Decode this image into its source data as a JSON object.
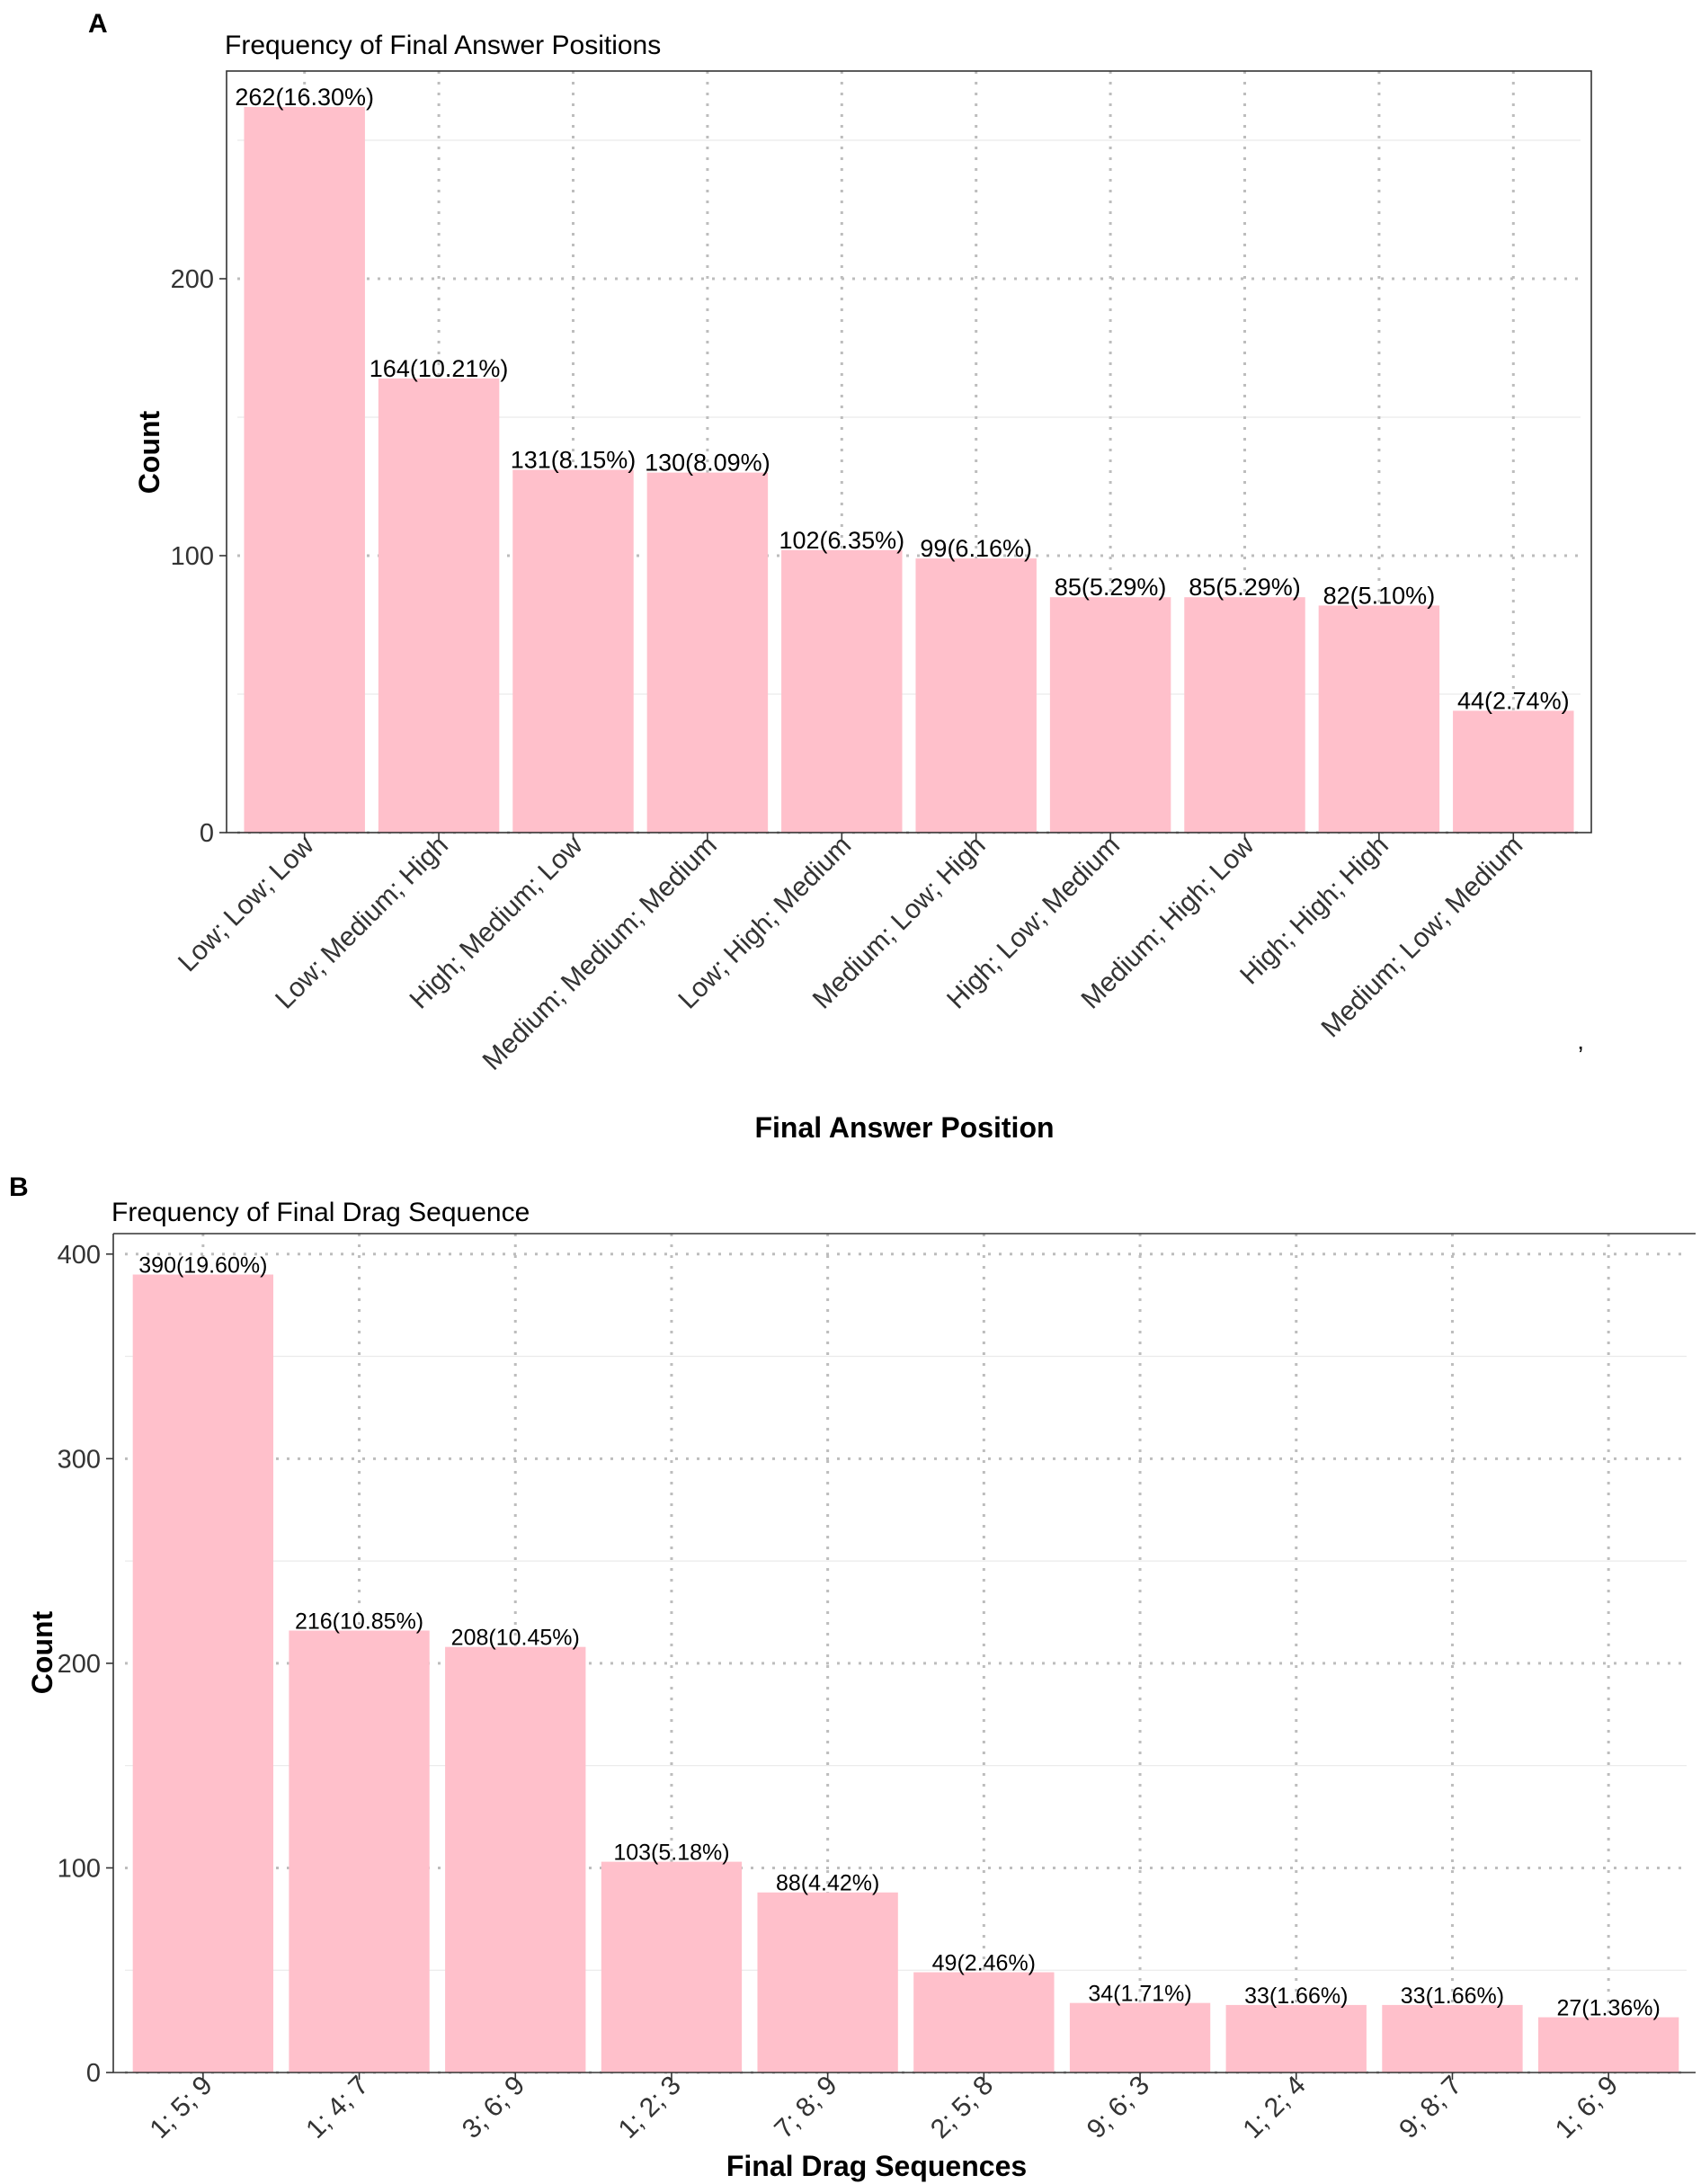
{
  "chart_data": [
    {
      "panel": "A",
      "type": "bar",
      "title": "Frequency of Final Answer Positions",
      "xlabel": "Final Answer Position",
      "ylabel": "Count",
      "ylim": [
        0,
        275
      ],
      "yticks": [
        0,
        100,
        200
      ],
      "grid": true,
      "fill_color": "#ffc0cb",
      "categories": [
        "Low; Low; Low",
        "Low; Medium; High",
        "High; Medium; Low",
        "Medium; Medium; Medium",
        "Low; High; Medium",
        "Medium; Low; High",
        "High; Low; Medium",
        "Medium; High; Low",
        "High; High; High",
        "Medium; Low; Medium"
      ],
      "values": [
        262,
        164,
        131,
        130,
        102,
        99,
        85,
        85,
        82,
        44
      ],
      "data_labels": [
        "262(16.30%)",
        "164(10.21%)",
        "131(8.15%)",
        "130(8.09%)",
        "102(6.35%)",
        "99(6.16%)",
        "85(5.29%)",
        "85(5.29%)",
        "82(5.10%)",
        "44(2.74%)"
      ]
    },
    {
      "panel": "B",
      "type": "bar",
      "title": "Frequency of Final Drag Sequence",
      "xlabel": "Final Drag Sequences",
      "ylabel": "Count",
      "ylim": [
        0,
        410
      ],
      "yticks": [
        0,
        100,
        200,
        300,
        400
      ],
      "grid": true,
      "fill_color": "#ffc0cb",
      "categories": [
        "1; 5; 9",
        "1; 4; 7",
        "3; 6; 9",
        "1; 2; 3",
        "7; 8; 9",
        "2; 5; 8",
        "9; 6; 3",
        "1; 2; 4",
        "9; 8; 7",
        "1; 6; 9"
      ],
      "values": [
        390,
        216,
        208,
        103,
        88,
        49,
        34,
        33,
        33,
        27
      ],
      "data_labels": [
        "390(19.60%)",
        "216(10.85%)",
        "208(10.45%)",
        "103(5.18%)",
        "88(4.42%)",
        "49(2.46%)",
        "34(1.71%)",
        "33(1.66%)",
        "33(1.66%)",
        "27(1.36%)"
      ]
    }
  ],
  "stray_mark": "’"
}
